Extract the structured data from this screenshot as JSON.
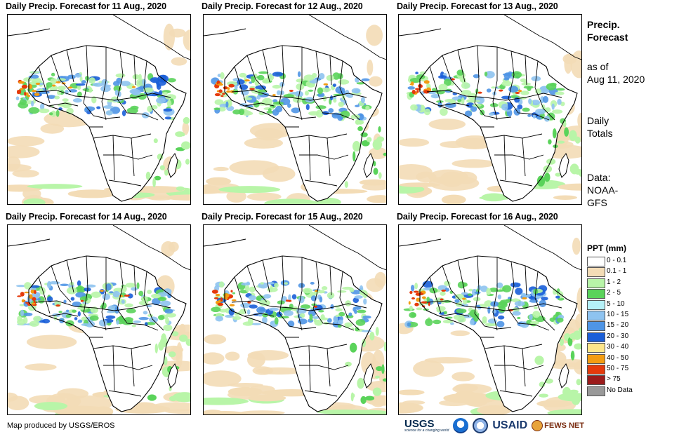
{
  "panels": [
    {
      "title": "Daily Precip. Forecast for 11 Aug., 2020",
      "day": 0
    },
    {
      "title": "Daily Precip. Forecast for 12 Aug., 2020",
      "day": 1
    },
    {
      "title": "Daily Precip. Forecast for 13 Aug., 2020",
      "day": 2
    },
    {
      "title": "Daily Precip. Forecast for 14 Aug., 2020",
      "day": 3
    },
    {
      "title": "Daily Precip. Forecast for 15 Aug., 2020",
      "day": 4
    },
    {
      "title": "Daily Precip. Forecast for 16 Aug., 2020",
      "day": 5
    }
  ],
  "side": {
    "heading_line1": "Precip.",
    "heading_line2": "Forecast",
    "asof_line1": "as of",
    "asof_line2": "Aug 11, 2020",
    "totals_line1": "Daily",
    "totals_line2": "Totals",
    "data_line1": "Data:",
    "data_line2": "NOAA-",
    "data_line3": "GFS"
  },
  "legend": {
    "title": "PPT (mm)",
    "items": [
      {
        "label": "0 - 0.1",
        "color": "#ffffff"
      },
      {
        "label": "0.1 - 1",
        "color": "#f3dcb6"
      },
      {
        "label": "1 - 2",
        "color": "#b8f5a8"
      },
      {
        "label": "2 - 5",
        "color": "#5ad35a"
      },
      {
        "label": "5 - 10",
        "color": "#b5f0f7"
      },
      {
        "label": "10 - 15",
        "color": "#8ec3f0"
      },
      {
        "label": "15 - 20",
        "color": "#4f95e6"
      },
      {
        "label": "20 - 30",
        "color": "#1a5ed8"
      },
      {
        "label": "30 - 40",
        "color": "#fde68a"
      },
      {
        "label": "40 - 50",
        "color": "#f39c12"
      },
      {
        "label": "50 - 75",
        "color": "#e53a0b"
      },
      {
        "label": "> 75",
        "color": "#9b1b1b"
      },
      {
        "label": "No Data",
        "color": "#999999"
      }
    ]
  },
  "credit": "Map produced by USGS/EROS",
  "logos": {
    "usgs": "USGS",
    "usgs_tagline": "science for a changing world",
    "usaid": "USAID",
    "fews": "FEWS NET"
  }
}
